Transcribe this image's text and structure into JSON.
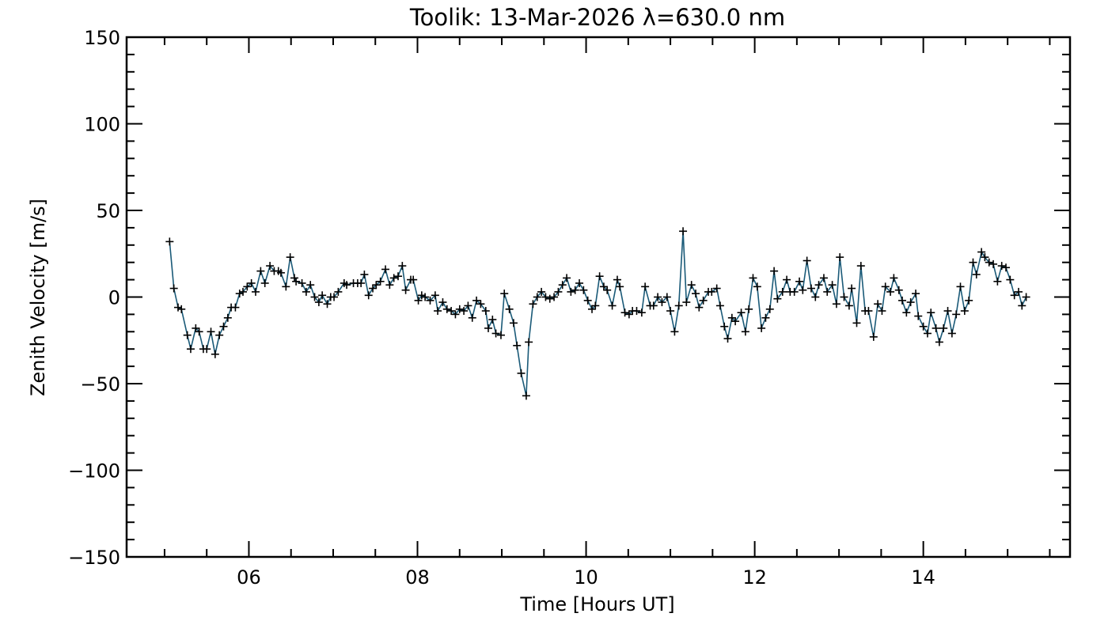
{
  "chart_data": {
    "type": "line",
    "title": "Toolik: 13-Mar-2026 λ=630.0 nm",
    "xlabel": "Time [Hours UT]",
    "ylabel": "Zenith Velocity [m/s]",
    "xlim": [
      4.55,
      15.74
    ],
    "ylim": [
      -150,
      150
    ],
    "xticks": [
      6,
      8,
      10,
      12,
      14
    ],
    "xtick_labels": [
      "06",
      "08",
      "10",
      "12",
      "14"
    ],
    "yticks": [
      -150,
      -100,
      -50,
      0,
      50,
      100,
      150
    ],
    "ytick_labels": [
      "−150",
      "−100",
      "−50",
      "0",
      "50",
      "100",
      "150"
    ],
    "x_minor_step": 0.5,
    "y_minor_step": 10,
    "grid": false,
    "marker": "plus",
    "colors": {
      "line": "#1a5a78",
      "marker": "#000000",
      "error": "#2b2bff",
      "axis": "#000000"
    },
    "series": [
      {
        "name": "Zenith velocity",
        "x": [
          5.06,
          5.11,
          5.16,
          5.2,
          5.27,
          5.31,
          5.37,
          5.41,
          5.46,
          5.5,
          5.55,
          5.6,
          5.65,
          5.7,
          5.75,
          5.79,
          5.84,
          5.89,
          5.93,
          5.98,
          6.03,
          6.08,
          6.14,
          6.19,
          6.25,
          6.3,
          6.35,
          6.38,
          6.44,
          6.49,
          6.54,
          6.56,
          6.63,
          6.68,
          6.73,
          6.78,
          6.83,
          6.87,
          6.93,
          6.97,
          7.01,
          7.06,
          7.13,
          7.16,
          7.24,
          7.29,
          7.33,
          7.37,
          7.42,
          7.47,
          7.51,
          7.56,
          7.62,
          7.67,
          7.72,
          7.77,
          7.82,
          7.86,
          7.92,
          7.95,
          8.01,
          8.05,
          8.09,
          8.15,
          8.21,
          8.24,
          8.3,
          8.35,
          8.4,
          8.45,
          8.5,
          8.55,
          8.6,
          8.65,
          8.7,
          8.75,
          8.81,
          8.84,
          8.89,
          8.93,
          8.99,
          9.03,
          9.09,
          9.14,
          9.18,
          9.23,
          9.29,
          9.32,
          9.37,
          9.42,
          9.47,
          9.52,
          9.57,
          9.62,
          9.67,
          9.72,
          9.77,
          9.82,
          9.87,
          9.92,
          9.97,
          10.02,
          10.07,
          10.11,
          10.16,
          10.21,
          10.25,
          10.31,
          10.37,
          10.4,
          10.46,
          10.51,
          10.55,
          10.6,
          10.66,
          10.7,
          10.76,
          10.8,
          10.85,
          10.9,
          10.96,
          11.0,
          11.05,
          11.1,
          11.15,
          11.19,
          11.25,
          11.3,
          11.34,
          11.39,
          11.45,
          11.49,
          11.55,
          11.59,
          11.64,
          11.68,
          11.73,
          11.77,
          11.84,
          11.89,
          11.93,
          11.98,
          12.03,
          12.08,
          12.13,
          12.18,
          12.23,
          12.27,
          12.33,
          12.38,
          12.42,
          12.47,
          12.53,
          12.57,
          12.62,
          12.67,
          12.72,
          12.76,
          12.82,
          12.86,
          12.92,
          12.97,
          13.01,
          13.06,
          13.12,
          13.15,
          13.21,
          13.26,
          13.31,
          13.35,
          13.41,
          13.46,
          13.51,
          13.55,
          13.61,
          13.65,
          13.71,
          13.75,
          13.8,
          13.85,
          13.91,
          13.94,
          14.0,
          14.05,
          14.09,
          14.15,
          14.19,
          14.24,
          14.29,
          14.34,
          14.39,
          14.44,
          14.49,
          14.54,
          14.59,
          14.63,
          14.69,
          14.73,
          14.78,
          14.83,
          14.88,
          14.93,
          14.98,
          15.03,
          15.08,
          15.13,
          15.17,
          15.22
        ],
        "y": [
          32,
          5,
          -6,
          -7,
          -22,
          -30,
          -18,
          -20,
          -30,
          -30,
          -20,
          -33,
          -22,
          -17,
          -12,
          -6,
          -6,
          2,
          3,
          6,
          8,
          3,
          15,
          8,
          18,
          15,
          15,
          14,
          6,
          23,
          11,
          9,
          8,
          3,
          7,
          0,
          -3,
          1,
          -4,
          0,
          0,
          3,
          8,
          7,
          8,
          8,
          8,
          13,
          1,
          5,
          7,
          9,
          16,
          7,
          11,
          12,
          18,
          4,
          10,
          10,
          -2,
          1,
          0,
          -2,
          1,
          -8,
          -3,
          -7,
          -8,
          -10,
          -7,
          -8,
          -5,
          -12,
          -2,
          -4,
          -8,
          -18,
          -13,
          -21,
          -22,
          2,
          -7,
          -15,
          -28,
          -44,
          -57,
          -26,
          -4,
          0,
          3,
          0,
          -1,
          0,
          3,
          7,
          11,
          3,
          4,
          8,
          4,
          -2,
          -7,
          -5,
          12,
          6,
          4,
          -5,
          10,
          6,
          -9,
          -10,
          -8,
          -8,
          -9,
          6,
          -5,
          -5,
          0,
          -3,
          0,
          -8,
          -20,
          -5,
          38,
          -3,
          7,
          2,
          -6,
          -2,
          3,
          3,
          5,
          -5,
          -17,
          -24,
          -12,
          -14,
          -9,
          -20,
          -7,
          11,
          6,
          -18,
          -12,
          -7,
          15,
          -1,
          3,
          10,
          3,
          3,
          9,
          4,
          21,
          5,
          0,
          7,
          11,
          3,
          7,
          -4,
          23,
          0,
          -5,
          5,
          -15,
          18,
          -8,
          -8,
          -23,
          -4,
          -8,
          6,
          3,
          11,
          4,
          -2,
          -9,
          -3,
          2,
          -11,
          -17,
          -21,
          -9,
          -18,
          -26,
          -18,
          -8,
          -21,
          -10,
          6,
          -8,
          -2,
          20,
          13,
          26,
          23,
          20,
          19,
          9,
          18,
          17,
          10,
          1,
          3,
          -5,
          0
        ]
      }
    ]
  }
}
